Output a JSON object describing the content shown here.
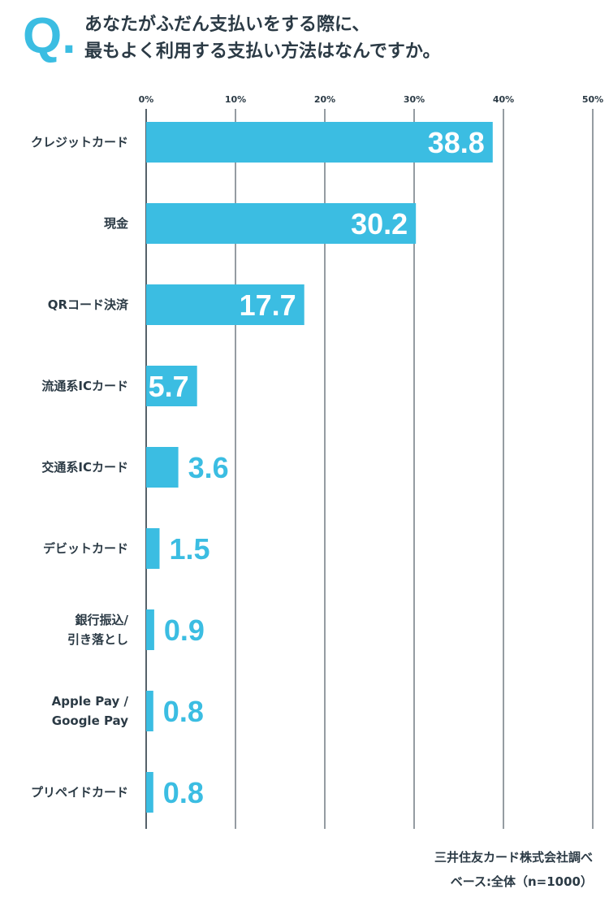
{
  "header": {
    "q_mark": "Q.",
    "question_lines": [
      "あなたがふだん支払いをする際に、",
      "最もよく利用する支払い方法はなんですか。"
    ]
  },
  "colors": {
    "bar": "#3bbde2",
    "axis": "#2b3a45",
    "label_inside": "#ffffff"
  },
  "chart_data": {
    "type": "bar",
    "orientation": "horizontal",
    "title": "あなたがふだん支払いをする際に、最もよく利用する支払い方法はなんですか。",
    "categories": [
      [
        "クレジットカード"
      ],
      [
        "現金"
      ],
      [
        "QRコード決済"
      ],
      [
        "流通系ICカード"
      ],
      [
        "交通系ICカード"
      ],
      [
        "デビットカード"
      ],
      [
        "銀行振込/",
        "引き落とし"
      ],
      [
        "Apple Pay /",
        "Google Pay"
      ],
      [
        "プリペイドカード"
      ]
    ],
    "values": [
      38.8,
      30.2,
      17.7,
      5.7,
      3.6,
      1.5,
      0.9,
      0.8,
      0.8
    ],
    "value_labels": [
      "38.8",
      "30.2",
      "17.7",
      "5.7",
      "3.6",
      "1.5",
      "0.9",
      "0.8",
      "0.8"
    ],
    "xlim": [
      0,
      50
    ],
    "ticks": [
      0,
      10,
      20,
      30,
      40,
      50
    ],
    "tick_labels": [
      "0%",
      "10%",
      "20%",
      "30%",
      "40%",
      "50%"
    ],
    "grid": true
  },
  "footer": {
    "source": "三井住友カード株式会社調べ",
    "base": "ベース:全体（n=1000）"
  }
}
